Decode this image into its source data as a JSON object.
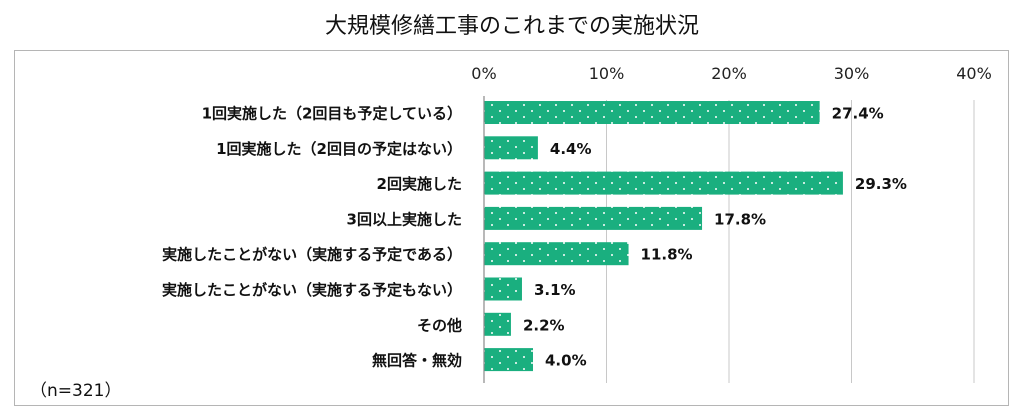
{
  "title": "大規模修繕工事のこれまでの実施状況",
  "note": "（n=321）",
  "colors": {
    "bar": "#1aaf7f",
    "dot": "#ffffff",
    "grid": "#c8c8c8"
  },
  "chart_data": {
    "type": "bar",
    "orientation": "horizontal",
    "categories": [
      "1回実施した（2回目も予定している）",
      "1回実施した（2回目の予定はない）",
      "2回実施した",
      "3回以上実施した",
      "実施したことがない（実施する予定である）",
      "実施したことがない（実施する予定もない）",
      "その他",
      "無回答・無効"
    ],
    "values": [
      27.4,
      4.4,
      29.3,
      17.8,
      11.8,
      3.1,
      2.2,
      4.0
    ],
    "value_labels": [
      "27.4%",
      "4.4%",
      "29.3%",
      "17.8%",
      "11.8%",
      "3.1%",
      "2.2%",
      "4.0%"
    ],
    "xlim": [
      0,
      40
    ],
    "xticks": [
      0,
      10,
      20,
      30,
      40
    ],
    "xtick_labels": [
      "0%",
      "10%",
      "20%",
      "30%",
      "40%"
    ],
    "axis_position": "top",
    "grid": true
  }
}
